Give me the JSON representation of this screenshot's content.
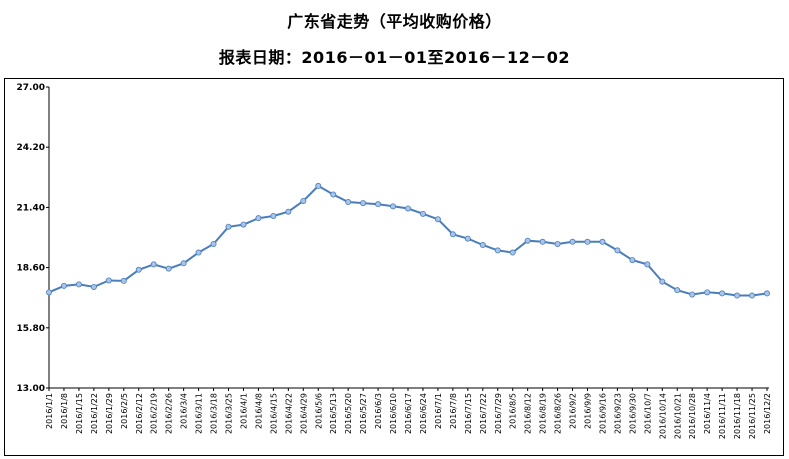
{
  "title": "广东省走势（平均收购价格）",
  "subtitle": "报表日期：2016－01－01至2016－12－02",
  "chart_data": {
    "type": "line",
    "title": "广东省走势（平均收购价格）",
    "subtitle": "报表日期：2016－01－01至2016－12－02",
    "xlabel": "",
    "ylabel": "",
    "ylim": [
      13.0,
      27.0
    ],
    "yticks": [
      "13.00",
      "15.80",
      "18.60",
      "21.40",
      "24.20",
      "27.00"
    ],
    "ytick_values": [
      13.0,
      15.8,
      18.6,
      21.4,
      24.2,
      27.0
    ],
    "grid": false,
    "legend": "none",
    "line_color": "#4a7ebb",
    "marker_color": "#a9c4e8",
    "categories": [
      "2016/1/1",
      "2016/1/8",
      "2016/1/15",
      "2016/1/22",
      "2016/1/29",
      "2016/2/5",
      "2016/2/12",
      "2016/2/19",
      "2016/2/26",
      "2016/3/4",
      "2016/3/11",
      "2016/3/18",
      "2016/3/25",
      "2016/4/1",
      "2016/4/8",
      "2016/4/15",
      "2016/4/22",
      "2016/4/29",
      "2016/5/6",
      "2016/5/13",
      "2016/5/20",
      "2016/5/27",
      "2016/6/3",
      "2016/6/10",
      "2016/6/17",
      "2016/6/24",
      "2016/7/1",
      "2016/7/8",
      "2016/7/15",
      "2016/7/22",
      "2016/7/29",
      "2016/8/5",
      "2016/8/12",
      "2016/8/19",
      "2016/8/26",
      "2016/9/2",
      "2016/9/9",
      "2016/9/16",
      "2016/9/23",
      "2016/9/30",
      "2016/10/7",
      "2016/10/14",
      "2016/10/21",
      "2016/10/28",
      "2016/11/4",
      "2016/11/11",
      "2016/11/18",
      "2016/11/25",
      "2016/12/2"
    ],
    "series": [
      {
        "values": [
          17.45,
          17.75,
          17.82,
          17.7,
          18.0,
          17.98,
          18.5,
          18.75,
          18.55,
          18.8,
          19.3,
          19.7,
          20.5,
          20.6,
          20.9,
          21.0,
          21.2,
          21.7,
          22.4,
          22.0,
          21.65,
          21.6,
          21.55,
          21.45,
          21.35,
          21.1,
          20.85,
          20.15,
          19.95,
          19.65,
          19.4,
          19.3,
          19.85,
          19.8,
          19.7,
          19.8,
          19.8,
          19.8,
          19.4,
          18.95,
          18.75,
          17.95,
          17.55,
          17.35,
          17.45,
          17.4,
          17.3,
          17.3,
          17.4
        ]
      }
    ]
  }
}
